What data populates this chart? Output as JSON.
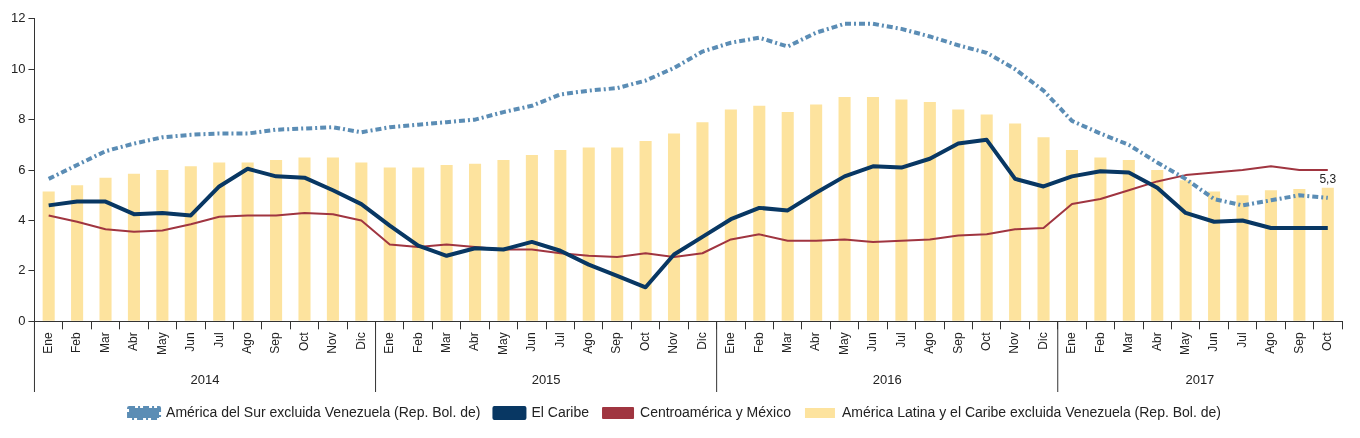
{
  "chart_data": {
    "type": "bar",
    "categories": [
      "Ene",
      "Feb",
      "Mar",
      "Abr",
      "May",
      "Jun",
      "Jul",
      "Ago",
      "Sep",
      "Oct",
      "Nov",
      "Dic",
      "Ene",
      "Feb",
      "Mar",
      "Abr",
      "May",
      "Jun",
      "Jul",
      "Ago",
      "Sep",
      "Oct",
      "Nov",
      "Dic",
      "Ene",
      "Feb",
      "Mar",
      "Abr",
      "May",
      "Jun",
      "Jul",
      "Ago",
      "Sep",
      "Oct",
      "Nov",
      "Dic",
      "Ene",
      "Feb",
      "Mar",
      "Abr",
      "May",
      "Jun",
      "Jul",
      "Ago",
      "Sep",
      "Oct"
    ],
    "annotations": [
      "2014",
      "2015",
      "2016",
      "2017"
    ],
    "ylim": [
      0,
      12
    ],
    "yticks": [
      0,
      2,
      4,
      6,
      8,
      10,
      12
    ],
    "grid": false,
    "legend": "bottom",
    "series": [
      {
        "name": "América del Sur excluida Venezuela (Rep. Bol. de)",
        "type": "line",
        "color": "#5b8db5",
        "line_style": "dashed",
        "values": [
          5.65,
          6.2,
          6.75,
          7.05,
          7.3,
          7.4,
          7.45,
          7.45,
          7.6,
          7.65,
          7.7,
          7.5,
          7.7,
          7.8,
          7.9,
          8.0,
          8.3,
          8.55,
          9.0,
          9.15,
          9.25,
          9.55,
          10.05,
          10.7,
          11.05,
          11.25,
          10.9,
          11.45,
          11.8,
          11.8,
          11.6,
          11.3,
          10.95,
          10.65,
          10.0,
          9.15,
          7.95,
          7.45,
          7.0,
          6.3,
          5.65,
          4.85,
          4.6,
          4.8,
          5.0,
          4.9
        ]
      },
      {
        "name": "El Caribe",
        "type": "line",
        "color": "#083763",
        "values": [
          4.6,
          4.75,
          4.75,
          4.25,
          4.3,
          4.2,
          5.35,
          6.05,
          5.75,
          5.7,
          5.2,
          4.65,
          3.8,
          3.0,
          2.6,
          2.9,
          2.85,
          3.15,
          2.8,
          2.25,
          1.8,
          1.35,
          2.65,
          3.35,
          4.05,
          4.5,
          4.4,
          5.1,
          5.75,
          6.15,
          6.1,
          6.45,
          7.05,
          7.2,
          5.65,
          5.35,
          5.75,
          5.95,
          5.9,
          5.3,
          4.3,
          3.95,
          4.0,
          3.7,
          3.7,
          3.7
        ]
      },
      {
        "name": "Centroamérica y México",
        "type": "line",
        "color": "#a03540",
        "values": [
          4.2,
          3.95,
          3.65,
          3.55,
          3.6,
          3.85,
          4.15,
          4.2,
          4.2,
          4.3,
          4.25,
          4.0,
          3.05,
          2.95,
          3.05,
          2.95,
          2.85,
          2.85,
          2.7,
          2.6,
          2.55,
          2.7,
          2.55,
          2.7,
          3.25,
          3.45,
          3.2,
          3.2,
          3.25,
          3.15,
          3.2,
          3.25,
          3.4,
          3.45,
          3.65,
          3.7,
          4.65,
          4.85,
          5.2,
          5.55,
          5.8,
          5.9,
          6.0,
          6.15,
          6.0,
          6.0
        ]
      },
      {
        "name": "América Latina y el Caribe excluida Venezuela (Rep. Bol. de)",
        "color": "#fde39e",
        "values": [
          5.15,
          5.4,
          5.7,
          5.85,
          6.0,
          6.15,
          6.3,
          6.3,
          6.4,
          6.5,
          6.5,
          6.3,
          6.1,
          6.1,
          6.2,
          6.25,
          6.4,
          6.6,
          6.8,
          6.9,
          6.9,
          7.15,
          7.45,
          7.9,
          8.4,
          8.55,
          8.3,
          8.6,
          8.9,
          8.9,
          8.8,
          8.7,
          8.4,
          8.2,
          7.85,
          7.3,
          6.8,
          6.5,
          6.4,
          6.0,
          5.6,
          5.15,
          5.0,
          5.2,
          5.25,
          5.3
        ],
        "value_labels": [
          null,
          null,
          null,
          null,
          null,
          null,
          null,
          null,
          null,
          null,
          null,
          null,
          null,
          null,
          null,
          null,
          null,
          null,
          null,
          null,
          null,
          null,
          null,
          null,
          null,
          null,
          null,
          null,
          null,
          null,
          null,
          null,
          null,
          null,
          null,
          null,
          null,
          null,
          null,
          null,
          null,
          null,
          null,
          null,
          null,
          "5,3"
        ]
      }
    ]
  }
}
